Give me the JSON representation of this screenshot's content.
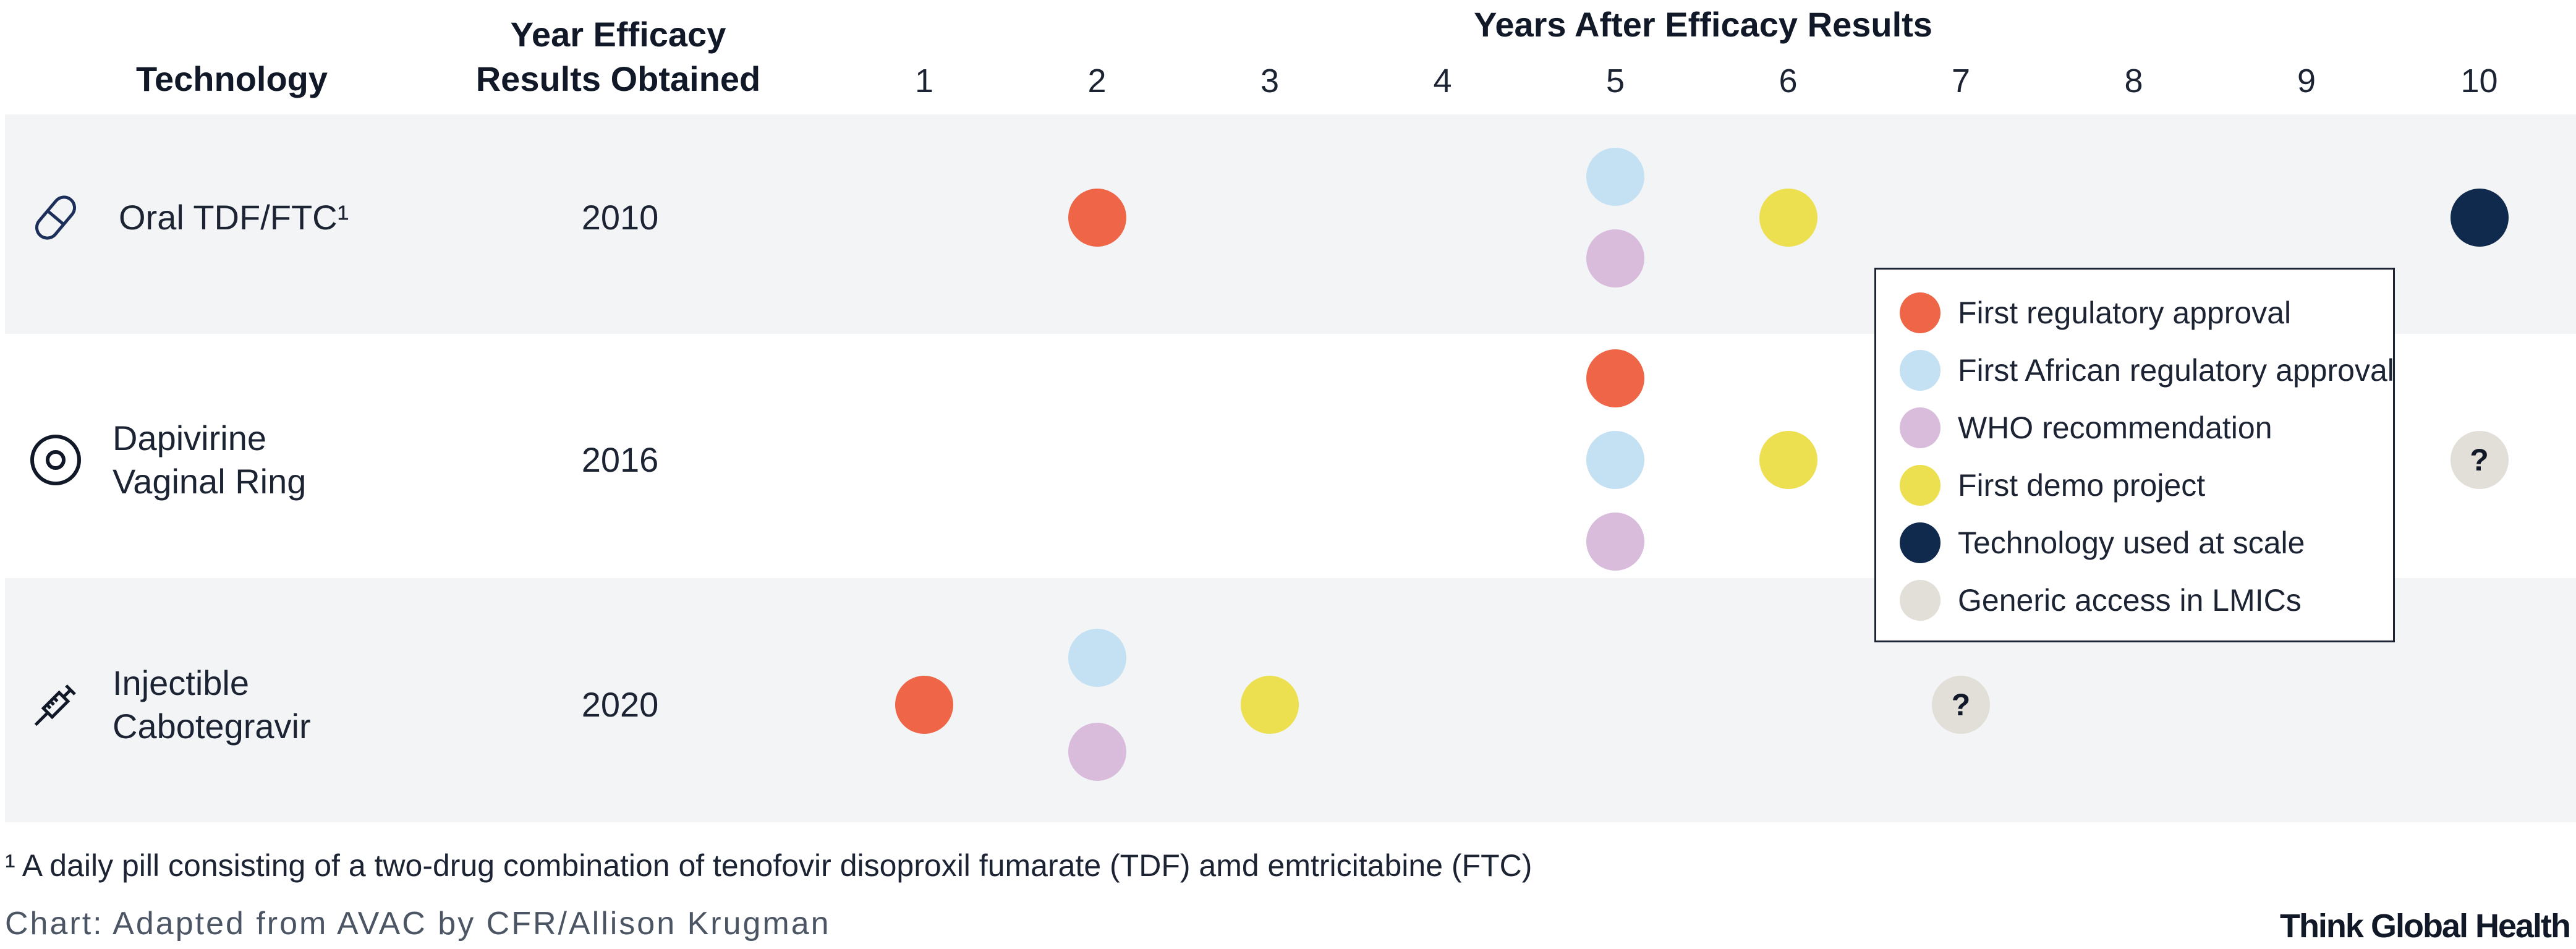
{
  "headers": {
    "technology": "Technology",
    "year_line1": "Year Efficacy",
    "year_line2": "Results Obtained",
    "years_after": "Years After Efficacy Results"
  },
  "chart_data": {
    "type": "scatter",
    "title": "",
    "x_axis_label": "Years After Efficacy Results",
    "x": [
      1,
      2,
      3,
      4,
      5,
      6,
      7,
      8,
      9,
      10
    ],
    "x_tick_labels": [
      "1",
      "2",
      "3",
      "4",
      "5",
      "6",
      "7",
      "8",
      "9",
      "10"
    ],
    "xlim": [
      1,
      10
    ],
    "rows": [
      {
        "technology": "Oral TDF/FTC¹",
        "icon": "pill-icon",
        "year": "2010",
        "shaded": true,
        "milestones": [
          {
            "type": "first_regulatory_approval",
            "year_after": 2,
            "label": ""
          },
          {
            "type": "first_african_regulatory_approval",
            "year_after": 5,
            "label": ""
          },
          {
            "type": "who_recommendation",
            "year_after": 5,
            "label": ""
          },
          {
            "type": "first_demo_project",
            "year_after": 6,
            "label": ""
          },
          {
            "type": "technology_used_at_scale",
            "year_after": 10,
            "label": ""
          }
        ]
      },
      {
        "technology": "Dapivirine\nVaginal Ring",
        "icon": "ring-icon",
        "year": "2016",
        "shaded": false,
        "milestones": [
          {
            "type": "first_regulatory_approval",
            "year_after": 5,
            "label": ""
          },
          {
            "type": "first_african_regulatory_approval",
            "year_after": 5,
            "label": ""
          },
          {
            "type": "who_recommendation",
            "year_after": 5,
            "label": ""
          },
          {
            "type": "first_demo_project",
            "year_after": 6,
            "label": ""
          },
          {
            "type": "generic_access_lmics",
            "year_after": 10,
            "label": "?"
          }
        ]
      },
      {
        "technology": "Injectible\nCabotegravir",
        "icon": "syringe-icon",
        "year": "2020",
        "shaded": true,
        "milestones": [
          {
            "type": "first_regulatory_approval",
            "year_after": 1,
            "label": ""
          },
          {
            "type": "first_african_regulatory_approval",
            "year_after": 2,
            "label": ""
          },
          {
            "type": "who_recommendation",
            "year_after": 2,
            "label": ""
          },
          {
            "type": "first_demo_project",
            "year_after": 3,
            "label": ""
          },
          {
            "type": "generic_access_lmics",
            "year_after": 7,
            "label": "?"
          }
        ]
      }
    ],
    "legend": {
      "position": "right",
      "entries": [
        {
          "type": "first_regulatory_approval",
          "label": "First regulatory approval",
          "color": "#ee6647"
        },
        {
          "type": "first_african_regulatory_approval",
          "label": "First African regulatory approval",
          "color": "#c4e0f3"
        },
        {
          "type": "who_recommendation",
          "label": "WHO recommendation",
          "color": "#d9bcdc"
        },
        {
          "type": "first_demo_project",
          "label": "First demo project",
          "color": "#ece050"
        },
        {
          "type": "technology_used_at_scale",
          "label": "Technology used at scale",
          "color": "#0f2a4d"
        },
        {
          "type": "generic_access_lmics",
          "label": "Generic access in LMICs",
          "color": "#e2ded8"
        }
      ]
    }
  },
  "footnote": "¹ A daily pill consisting of a two-drug combination of tenofovir disoproxil fumarate (TDF) amd emtricitabine (FTC)",
  "credit": "Chart: Adapted from AVAC by CFR/Allison Krugman",
  "brand": "Think Global Health"
}
